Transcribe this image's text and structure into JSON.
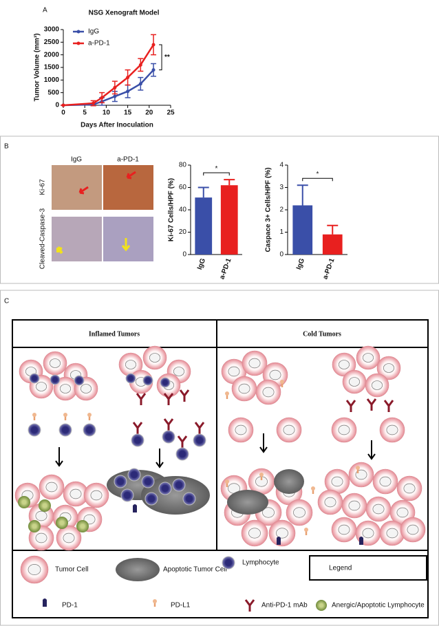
{
  "panels": [
    "A",
    "B",
    "C"
  ],
  "chart_data": [
    {
      "type": "line",
      "title": "NSG Xenograft Model",
      "x_label": "Days After Inoculation",
      "y_label": "Tumor Volume (mm³)",
      "x": [
        0,
        7,
        9,
        12,
        15,
        18,
        21
      ],
      "series": [
        {
          "name": "IgG",
          "color": "#3a4fa8",
          "values": [
            0,
            30,
            150,
            350,
            550,
            850,
            1400
          ],
          "errors": [
            0,
            50,
            150,
            200,
            250,
            250,
            250
          ]
        },
        {
          "name": "a-PD-1",
          "color": "#e8201f",
          "values": [
            0,
            80,
            300,
            700,
            1100,
            1600,
            2400
          ],
          "errors": [
            0,
            100,
            200,
            250,
            300,
            250,
            400
          ]
        }
      ],
      "xlim": [
        0,
        25
      ],
      "xticks": [
        0,
        5,
        10,
        15,
        20,
        25
      ],
      "ylim": [
        0,
        3000
      ],
      "yticks": [
        0,
        500,
        1000,
        1500,
        2000,
        2500,
        3000
      ],
      "annotation": "**"
    },
    {
      "type": "bar",
      "y_label": "Ki-67 Cells/HPF (%)",
      "categories": [
        "IgG",
        "a-PD-1"
      ],
      "values": [
        51,
        62
      ],
      "errors": [
        9,
        5
      ],
      "colors": [
        "#3a4fa8",
        "#e8201f"
      ],
      "ylim": [
        0,
        80
      ],
      "yticks": [
        0,
        20,
        40,
        60,
        80
      ],
      "annotation": "*"
    },
    {
      "type": "bar",
      "y_label": "Caspace 3+ Cells/HPF (%)",
      "categories": [
        "IgG",
        "a-PD-1"
      ],
      "values": [
        2.2,
        0.9
      ],
      "errors": [
        0.9,
        0.4
      ],
      "colors": [
        "#3a4fa8",
        "#e8201f"
      ],
      "ylim": [
        0,
        4
      ],
      "yticks": [
        0,
        1,
        2,
        3,
        4
      ],
      "annotation": "*"
    }
  ],
  "micrographs": {
    "columns": [
      "IgG",
      "a-PD-1"
    ],
    "rows": [
      "Ki-67",
      "Cleaved-Caspase-3"
    ]
  },
  "diagram": {
    "headers": [
      "Inflamed Tumors",
      "Cold Tumors"
    ],
    "legend_title": "Legend",
    "legend": [
      "Tumor Cell",
      "Apoptotic Tumor Cell",
      "Lymphocyte",
      "PD-1",
      "PD-L1",
      "Anti-PD-1 mAb",
      "Anergic/Apoptotic Lymphocyte"
    ]
  }
}
